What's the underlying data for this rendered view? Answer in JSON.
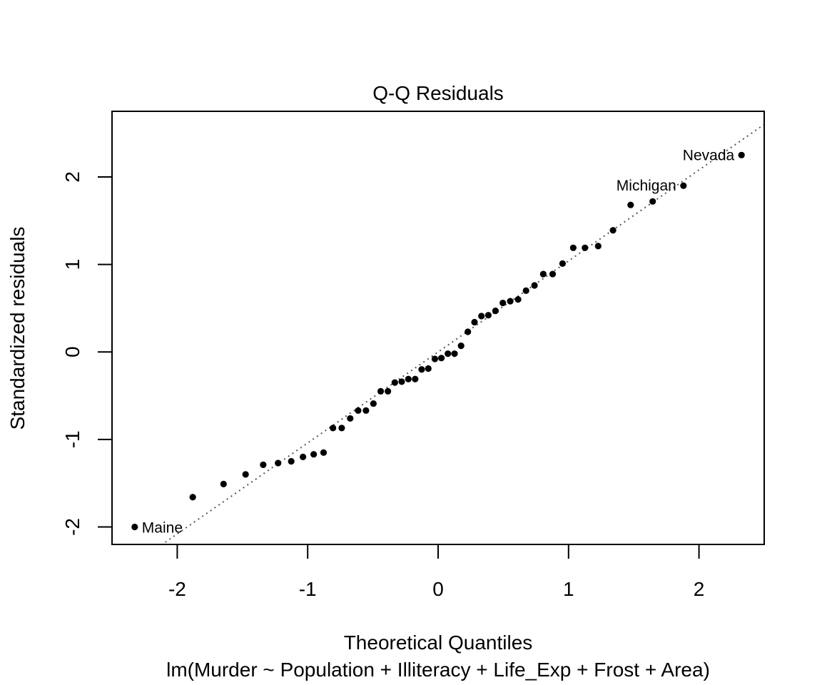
{
  "chart_data": {
    "type": "scatter",
    "title": "Q-Q Residuals",
    "xlabel": "Theoretical Quantiles",
    "ylabel": "Standardized residuals",
    "sublabel": "lm(Murder ~ Population + Illiteracy + Life_Exp + Frost + Area)",
    "xlim": [
      -2.5,
      2.5
    ],
    "ylim": [
      -2.2,
      2.75
    ],
    "x_ticks": [
      -2,
      -1,
      0,
      1,
      2
    ],
    "x_tick_labels": [
      "-2",
      "-1",
      "0",
      "1",
      "2"
    ],
    "y_ticks": [
      -2,
      -1,
      0,
      1,
      2
    ],
    "y_tick_labels": [
      "-2",
      "-1",
      "0",
      "1",
      "2"
    ],
    "grid": false,
    "reference_line": {
      "style": "dotted",
      "color": "#555555",
      "intercept": 0.0,
      "slope": 1.04
    },
    "series": [
      {
        "marker_color": "#000000",
        "points": [
          {
            "x": -2.326,
            "y": -2.0
          },
          {
            "x": -1.881,
            "y": -1.66
          },
          {
            "x": -1.645,
            "y": -1.51
          },
          {
            "x": -1.476,
            "y": -1.4
          },
          {
            "x": -1.341,
            "y": -1.29
          },
          {
            "x": -1.227,
            "y": -1.27
          },
          {
            "x": -1.126,
            "y": -1.25
          },
          {
            "x": -1.036,
            "y": -1.2
          },
          {
            "x": -0.954,
            "y": -1.17
          },
          {
            "x": -0.878,
            "y": -1.15
          },
          {
            "x": -0.806,
            "y": -0.87
          },
          {
            "x": -0.739,
            "y": -0.87
          },
          {
            "x": -0.674,
            "y": -0.76
          },
          {
            "x": -0.613,
            "y": -0.67
          },
          {
            "x": -0.553,
            "y": -0.67
          },
          {
            "x": -0.496,
            "y": -0.59
          },
          {
            "x": -0.44,
            "y": -0.45
          },
          {
            "x": -0.385,
            "y": -0.45
          },
          {
            "x": -0.332,
            "y": -0.35
          },
          {
            "x": -0.279,
            "y": -0.34
          },
          {
            "x": -0.228,
            "y": -0.31
          },
          {
            "x": -0.176,
            "y": -0.31
          },
          {
            "x": -0.126,
            "y": -0.2
          },
          {
            "x": -0.075,
            "y": -0.19
          },
          {
            "x": -0.025,
            "y": -0.08
          },
          {
            "x": 0.025,
            "y": -0.07
          },
          {
            "x": 0.075,
            "y": -0.02
          },
          {
            "x": 0.126,
            "y": -0.02
          },
          {
            "x": 0.176,
            "y": 0.07
          },
          {
            "x": 0.228,
            "y": 0.23
          },
          {
            "x": 0.279,
            "y": 0.34
          },
          {
            "x": 0.332,
            "y": 0.41
          },
          {
            "x": 0.385,
            "y": 0.42
          },
          {
            "x": 0.44,
            "y": 0.47
          },
          {
            "x": 0.496,
            "y": 0.56
          },
          {
            "x": 0.553,
            "y": 0.58
          },
          {
            "x": 0.613,
            "y": 0.6
          },
          {
            "x": 0.674,
            "y": 0.7
          },
          {
            "x": 0.739,
            "y": 0.76
          },
          {
            "x": 0.806,
            "y": 0.89
          },
          {
            "x": 0.878,
            "y": 0.89
          },
          {
            "x": 0.954,
            "y": 1.01
          },
          {
            "x": 1.036,
            "y": 1.19
          },
          {
            "x": 1.126,
            "y": 1.19
          },
          {
            "x": 1.227,
            "y": 1.21
          },
          {
            "x": 1.341,
            "y": 1.39
          },
          {
            "x": 1.476,
            "y": 1.68
          },
          {
            "x": 1.645,
            "y": 1.72
          },
          {
            "x": 1.881,
            "y": 1.9,
            "label": "Michigan",
            "label_side": "left"
          },
          {
            "x": 2.326,
            "y": 2.25,
            "label": "Nevada",
            "label_side": "left"
          }
        ]
      }
    ],
    "extra_labels": []
  }
}
